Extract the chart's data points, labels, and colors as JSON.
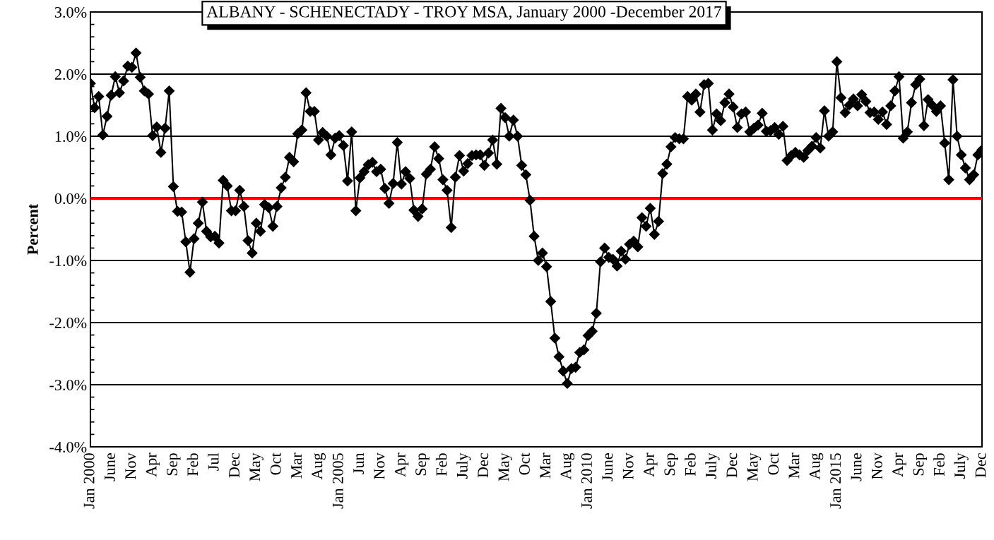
{
  "chart_data": {
    "type": "line",
    "title": "ALBANY - SCHENECTADY - TROY MSA, January 2000 -December 2017",
    "ylabel": "Percent",
    "categories": [
      "Jan 2000",
      null,
      null,
      null,
      null,
      "June",
      null,
      null,
      null,
      null,
      "Nov",
      null,
      null,
      null,
      null,
      "Apr",
      null,
      null,
      null,
      null,
      "Sep",
      null,
      null,
      null,
      null,
      "Feb",
      null,
      null,
      null,
      null,
      "Jul",
      null,
      null,
      null,
      null,
      "Dec",
      null,
      null,
      null,
      null,
      "May",
      null,
      null,
      null,
      null,
      "Oct",
      null,
      null,
      null,
      null,
      "Mar",
      null,
      null,
      null,
      null,
      "Aug",
      null,
      null,
      null,
      null,
      "Jan 2005",
      null,
      null,
      null,
      null,
      "Jun",
      null,
      null,
      null,
      null,
      "Nov",
      null,
      null,
      null,
      null,
      "Apr",
      null,
      null,
      null,
      null,
      "Sep",
      null,
      null,
      null,
      null,
      "Feb",
      null,
      null,
      null,
      null,
      "July",
      null,
      null,
      null,
      null,
      "Dec",
      null,
      null,
      null,
      null,
      "May",
      null,
      null,
      null,
      null,
      "Oct",
      null,
      null,
      null,
      null,
      "Mar",
      null,
      null,
      null,
      null,
      "Aug",
      null,
      null,
      null,
      null,
      "Jan 2010",
      null,
      null,
      null,
      null,
      "June",
      null,
      null,
      null,
      null,
      "Nov",
      null,
      null,
      null,
      null,
      "Apr",
      null,
      null,
      null,
      null,
      "Sep",
      null,
      null,
      null,
      null,
      "Feb",
      null,
      null,
      null,
      null,
      "July",
      null,
      null,
      null,
      null,
      "Dec",
      null,
      null,
      null,
      null,
      "May",
      null,
      null,
      null,
      null,
      "Oct",
      null,
      null,
      null,
      null,
      "Mar",
      null,
      null,
      null,
      null,
      "Aug",
      null,
      null,
      null,
      null,
      "Jan 2015",
      null,
      null,
      null,
      null,
      "June",
      null,
      null,
      null,
      null,
      "Nov",
      null,
      null,
      null,
      null,
      "Apr",
      null,
      null,
      null,
      null,
      "Sep",
      null,
      null,
      null,
      null,
      "Feb",
      null,
      null,
      null,
      null,
      "July",
      null,
      null,
      null,
      null,
      "Dec"
    ],
    "series": [
      {
        "color": "#000000",
        "values": [
          1.85,
          1.46,
          1.64,
          1.02,
          1.32,
          1.66,
          1.96,
          1.7,
          1.89,
          2.13,
          2.11,
          2.34,
          1.95,
          1.73,
          1.68,
          1.01,
          1.15,
          0.74,
          1.13,
          1.73,
          0.19,
          -0.21,
          -0.22,
          -0.7,
          -1.19,
          -0.65,
          -0.4,
          -0.06,
          -0.53,
          -0.62,
          -0.61,
          -0.72,
          0.29,
          0.2,
          -0.2,
          -0.2,
          0.13,
          -0.13,
          -0.68,
          -0.88,
          -0.4,
          -0.53,
          -0.1,
          -0.15,
          -0.45,
          -0.13,
          0.17,
          0.34,
          0.66,
          0.59,
          1.04,
          1.1,
          1.7,
          1.4,
          1.4,
          0.94,
          1.06,
          1.0,
          0.7,
          0.97,
          1.01,
          0.85,
          0.28,
          1.07,
          -0.2,
          0.33,
          0.43,
          0.54,
          0.58,
          0.43,
          0.47,
          0.16,
          -0.08,
          0.24,
          0.9,
          0.23,
          0.43,
          0.32,
          -0.19,
          -0.29,
          -0.17,
          0.39,
          0.47,
          0.83,
          0.64,
          0.3,
          0.13,
          -0.47,
          0.34,
          0.69,
          0.44,
          0.56,
          0.69,
          0.7,
          0.7,
          0.53,
          0.73,
          0.94,
          0.55,
          1.45,
          1.3,
          1.0,
          1.26,
          1.0,
          0.53,
          0.38,
          -0.03,
          -0.61,
          -1.0,
          -0.88,
          -1.1,
          -1.66,
          -2.25,
          -2.55,
          -2.78,
          -2.98,
          -2.74,
          -2.72,
          -2.48,
          -2.44,
          -2.21,
          -2.14,
          -1.85,
          -1.02,
          -0.8,
          -0.95,
          -0.98,
          -1.09,
          -0.85,
          -0.98,
          -0.74,
          -0.69,
          -0.78,
          -0.31,
          -0.45,
          -0.16,
          -0.58,
          -0.37,
          0.4,
          0.55,
          0.83,
          0.98,
          0.96,
          0.96,
          1.64,
          1.58,
          1.68,
          1.39,
          1.83,
          1.85,
          1.1,
          1.36,
          1.25,
          1.54,
          1.68,
          1.47,
          1.14,
          1.36,
          1.39,
          1.07,
          1.13,
          1.18,
          1.37,
          1.08,
          1.09,
          1.14,
          1.03,
          1.16,
          0.61,
          0.69,
          0.74,
          0.7,
          0.66,
          0.77,
          0.84,
          0.98,
          0.81,
          1.41,
          1.0,
          1.07,
          2.2,
          1.62,
          1.38,
          1.5,
          1.6,
          1.49,
          1.67,
          1.56,
          1.38,
          1.39,
          1.27,
          1.39,
          1.19,
          1.49,
          1.73,
          1.96,
          0.97,
          1.07,
          1.54,
          1.83,
          1.92,
          1.17,
          1.59,
          1.5,
          1.4,
          1.49,
          0.89,
          0.3,
          1.91,
          1.0,
          0.7,
          0.49,
          0.3,
          0.38,
          0.7,
          0.78
        ]
      }
    ],
    "ylim": [
      -4.0,
      3.0
    ],
    "yticks": [
      {
        "value": -4.0,
        "label": "-4.0%"
      },
      {
        "value": -3.0,
        "label": "-3.0%"
      },
      {
        "value": -2.0,
        "label": "-2.0%"
      },
      {
        "value": -1.0,
        "label": "-1.0%"
      },
      {
        "value": 0.0,
        "label": "0.0%"
      },
      {
        "value": 1.0,
        "label": "1.0%"
      },
      {
        "value": 2.0,
        "label": "2.0%"
      },
      {
        "value": 3.0,
        "label": "3.0%"
      }
    ],
    "ref_lines": [
      {
        "axis": "y",
        "value": 0,
        "color": "#ff0000"
      }
    ],
    "grid": "y",
    "marker": "diamond",
    "line_style": "solid"
  }
}
